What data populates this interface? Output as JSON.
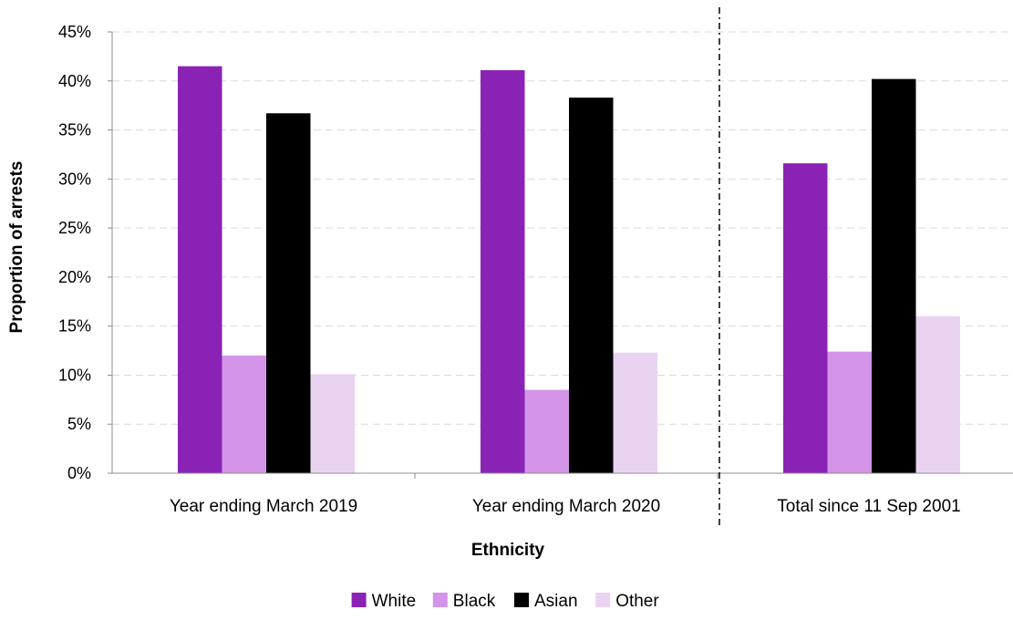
{
  "chart_data": {
    "type": "bar",
    "xlabel": "Ethnicity",
    "ylabel": "Proportion of arrests",
    "ylim": [
      0,
      45
    ],
    "y_unit": "%",
    "y_ticks": [
      0,
      5,
      10,
      15,
      20,
      25,
      30,
      35,
      40,
      45
    ],
    "y_tick_labels": [
      "0%",
      "5%",
      "10%",
      "15%",
      "20%",
      "25%",
      "30%",
      "35%",
      "40%",
      "45%"
    ],
    "grid": "horizontal dashed",
    "legend_position": "bottom",
    "categories": [
      "Year ending March 2019",
      "Year ending March 2020",
      "Total since 11 Sep 2001"
    ],
    "divider_after_category": 1,
    "series": [
      {
        "name": "White",
        "color": "#8a23b5",
        "values": [
          41.5,
          41.1,
          31.6
        ]
      },
      {
        "name": "Black",
        "color": "#d495e9",
        "values": [
          12.0,
          8.5,
          12.4
        ]
      },
      {
        "name": "Asian",
        "color": "#000000",
        "values": [
          36.7,
          38.3,
          40.2
        ]
      },
      {
        "name": "Other",
        "color": "#ead3f1",
        "values": [
          10.1,
          12.3,
          16.0
        ]
      }
    ]
  }
}
